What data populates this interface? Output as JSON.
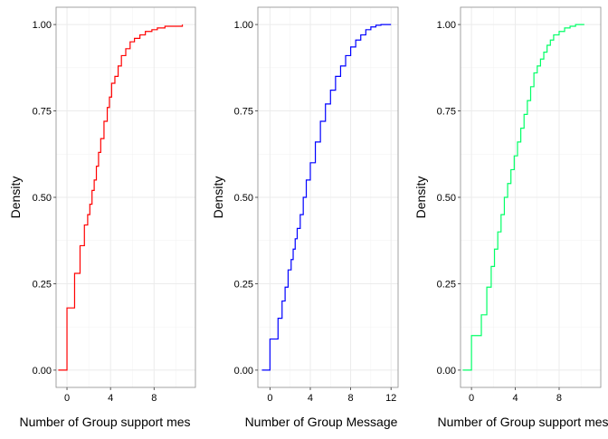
{
  "chart_data": [
    {
      "type": "line",
      "step": true,
      "xlabel": "Number of Group support mes",
      "ylabel": "Density",
      "xlim": [
        -1.0,
        11.8
      ],
      "ylim": [
        -0.05,
        1.05
      ],
      "xticks": [
        0,
        4,
        8
      ],
      "xtick_labels": [
        "0",
        "4",
        "8"
      ],
      "yticks": [
        0,
        0.25,
        0.5,
        0.75,
        1
      ],
      "ytick_labels": [
        "0.00",
        "0.25",
        "0.50",
        "0.75",
        "1.00"
      ],
      "grid": true,
      "color": "#ff0000",
      "series": [
        {
          "x": [
            -0.8,
            0.0,
            0.7,
            1.2,
            1.6,
            1.9,
            2.1,
            2.3,
            2.5,
            2.7,
            2.9,
            3.1,
            3.4,
            3.7,
            3.9,
            4.1,
            4.4,
            4.7,
            5.0,
            5.4,
            5.8,
            6.2,
            6.7,
            7.2,
            7.8,
            8.3,
            9.0,
            10.6
          ],
          "y": [
            0.0,
            0.18,
            0.28,
            0.36,
            0.42,
            0.45,
            0.48,
            0.52,
            0.55,
            0.59,
            0.63,
            0.67,
            0.72,
            0.76,
            0.79,
            0.83,
            0.85,
            0.88,
            0.91,
            0.93,
            0.95,
            0.96,
            0.97,
            0.98,
            0.985,
            0.99,
            0.995,
            1.0
          ]
        }
      ]
    },
    {
      "type": "line",
      "step": true,
      "xlabel": "Number of Group Message",
      "ylabel": "Density",
      "xlim": [
        -1.2,
        12.7
      ],
      "ylim": [
        -0.05,
        1.05
      ],
      "xticks": [
        0,
        4,
        8,
        12
      ],
      "xtick_labels": [
        "0",
        "4",
        "8",
        "12"
      ],
      "yticks": [
        0,
        0.25,
        0.5,
        0.75,
        1
      ],
      "ytick_labels": [
        "0.00",
        "0.25",
        "0.50",
        "0.75",
        "1.00"
      ],
      "grid": true,
      "color": "#0000ff",
      "series": [
        {
          "x": [
            -0.8,
            0.0,
            0.8,
            1.2,
            1.5,
            1.8,
            2.1,
            2.3,
            2.5,
            2.7,
            3.0,
            3.3,
            3.6,
            4.0,
            4.5,
            5.0,
            5.5,
            6.0,
            6.5,
            7.0,
            7.5,
            8.0,
            8.5,
            9.0,
            9.5,
            10.0,
            10.5,
            11.0,
            12.0
          ],
          "y": [
            0.0,
            0.09,
            0.15,
            0.2,
            0.24,
            0.29,
            0.32,
            0.35,
            0.38,
            0.41,
            0.45,
            0.5,
            0.55,
            0.6,
            0.66,
            0.72,
            0.77,
            0.81,
            0.85,
            0.88,
            0.91,
            0.935,
            0.955,
            0.97,
            0.985,
            0.993,
            0.998,
            1.0,
            1.0
          ]
        }
      ]
    },
    {
      "type": "line",
      "step": true,
      "xlabel": "Number of Group support mes",
      "ylabel": "Density",
      "xlim": [
        -1.0,
        11.8
      ],
      "ylim": [
        -0.05,
        1.05
      ],
      "xticks": [
        0,
        4,
        8
      ],
      "xtick_labels": [
        "0",
        "4",
        "8"
      ],
      "yticks": [
        0,
        0.25,
        0.5,
        0.75,
        1
      ],
      "ytick_labels": [
        "0.00",
        "0.25",
        "0.50",
        "0.75",
        "1.00"
      ],
      "grid": true,
      "color": "#00ff66",
      "series": [
        {
          "x": [
            -0.8,
            0.0,
            0.9,
            1.4,
            1.8,
            2.1,
            2.4,
            2.7,
            3.0,
            3.3,
            3.6,
            3.9,
            4.2,
            4.5,
            4.8,
            5.1,
            5.4,
            5.7,
            6.0,
            6.3,
            6.6,
            6.9,
            7.2,
            7.5,
            8.0,
            8.5,
            9.0,
            9.5,
            10.3
          ],
          "y": [
            0.0,
            0.1,
            0.16,
            0.24,
            0.3,
            0.35,
            0.4,
            0.45,
            0.5,
            0.54,
            0.58,
            0.62,
            0.66,
            0.7,
            0.74,
            0.78,
            0.82,
            0.86,
            0.88,
            0.9,
            0.92,
            0.94,
            0.955,
            0.97,
            0.98,
            0.99,
            0.995,
            1.0,
            1.0
          ]
        }
      ]
    }
  ]
}
